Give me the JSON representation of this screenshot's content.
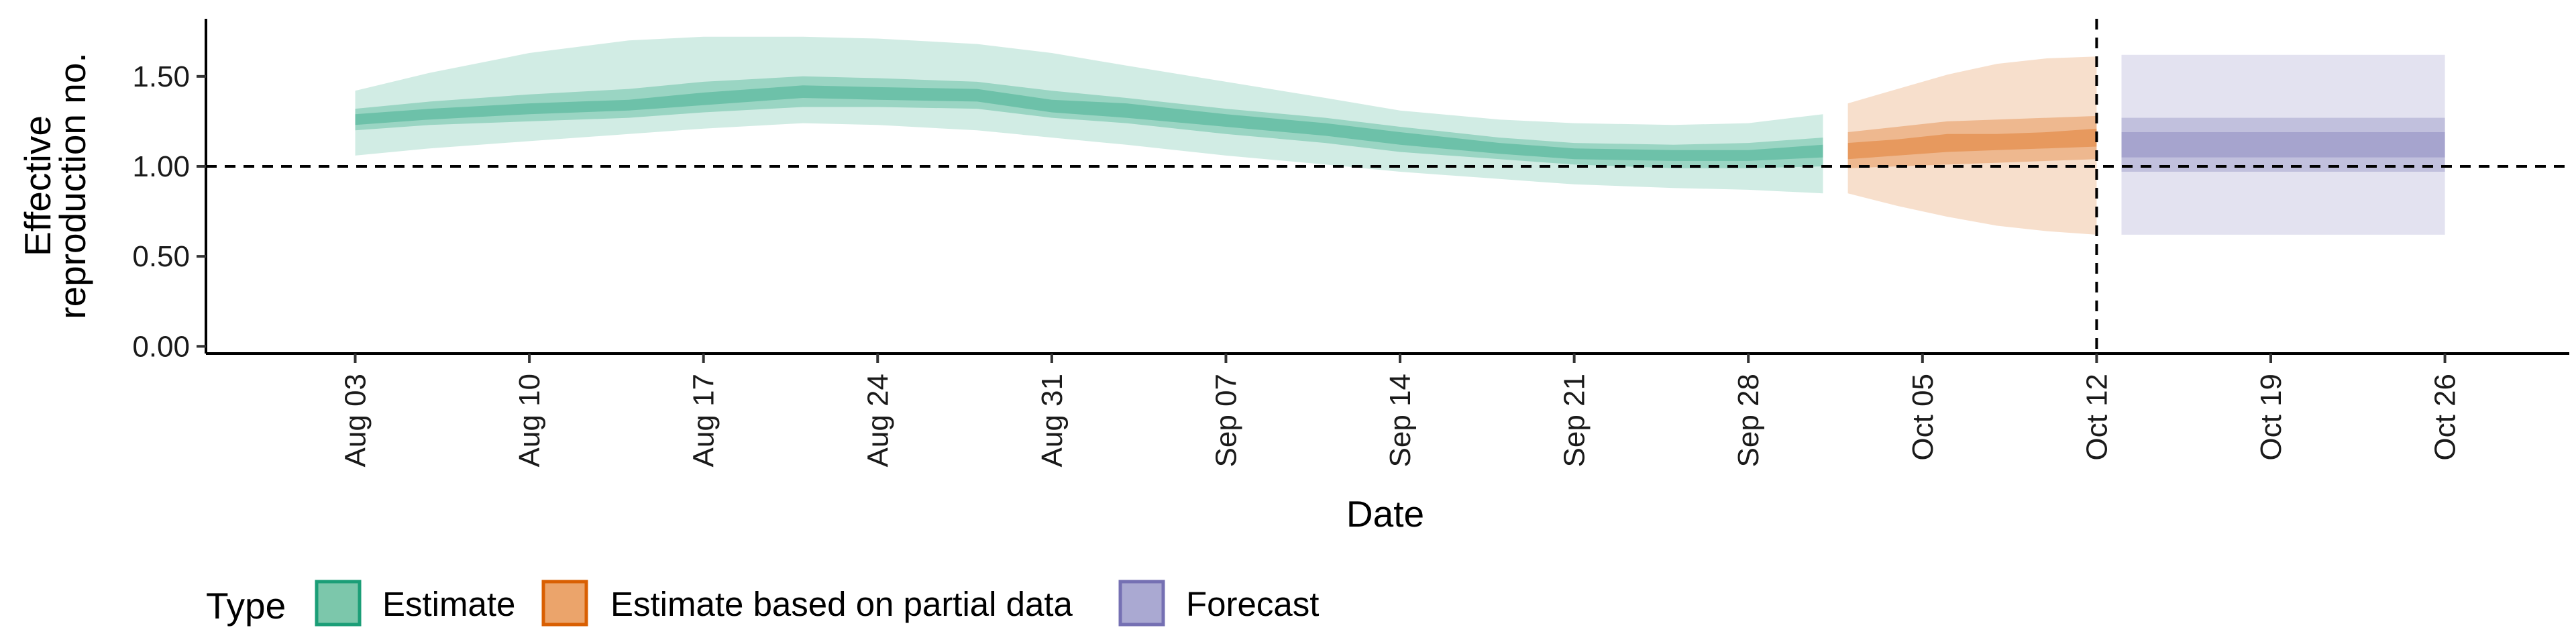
{
  "chart_data": {
    "type": "area",
    "title": "",
    "xlabel": "Date",
    "ylabel_lines": [
      "Effective",
      "reproduction no."
    ],
    "ylim": [
      -0.04,
      1.82
    ],
    "y_ticks": [
      0.0,
      0.5,
      1.0,
      1.5
    ],
    "y_tick_labels": [
      "0.00",
      "0.50",
      "1.00",
      "1.50"
    ],
    "x_range": [
      "2020-07-28",
      "2020-10-31"
    ],
    "x_ticks": [
      "2020-08-03",
      "2020-08-10",
      "2020-08-17",
      "2020-08-24",
      "2020-08-31",
      "2020-09-07",
      "2020-09-14",
      "2020-09-21",
      "2020-09-28",
      "2020-10-05",
      "2020-10-12",
      "2020-10-19",
      "2020-10-26"
    ],
    "x_tick_labels": [
      "Aug 03",
      "Aug 10",
      "Aug 17",
      "Aug 24",
      "Aug 31",
      "Sep 07",
      "Sep 14",
      "Sep 21",
      "Sep 28",
      "Oct 05",
      "Oct 12",
      "Oct 19",
      "Oct 26"
    ],
    "reference_line_y": 1.0,
    "reference_line_x": "2020-10-12",
    "grid": false,
    "legend": {
      "title": "Type",
      "position": "bottom",
      "entries": [
        {
          "label": "Estimate",
          "fill": "#7cc7ab",
          "stroke": "#1b9e77"
        },
        {
          "label": "Estimate based on partial data",
          "fill": "#eba46b",
          "stroke": "#d95f02"
        },
        {
          "label": "Forecast",
          "fill": "#aaa9d2",
          "stroke": "#7570b3"
        }
      ]
    },
    "series": [
      {
        "name": "Estimate",
        "color": "#1b9e77",
        "x": [
          "2020-08-03",
          "2020-08-06",
          "2020-08-10",
          "2020-08-14",
          "2020-08-17",
          "2020-08-21",
          "2020-08-24",
          "2020-08-28",
          "2020-08-31",
          "2020-09-03",
          "2020-09-07",
          "2020-09-11",
          "2020-09-14",
          "2020-09-18",
          "2020-09-21",
          "2020-09-25",
          "2020-09-28",
          "2020-10-01"
        ],
        "median": [
          1.26,
          1.29,
          1.32,
          1.34,
          1.38,
          1.42,
          1.41,
          1.4,
          1.33,
          1.31,
          1.25,
          1.21,
          1.16,
          1.1,
          1.07,
          1.06,
          1.06,
          1.08
        ],
        "lower_90": [
          1.06,
          1.1,
          1.14,
          1.18,
          1.21,
          1.24,
          1.23,
          1.2,
          1.16,
          1.12,
          1.06,
          1.01,
          0.97,
          0.93,
          0.9,
          0.88,
          0.87,
          0.85
        ],
        "upper_90": [
          1.42,
          1.52,
          1.63,
          1.7,
          1.72,
          1.72,
          1.71,
          1.68,
          1.63,
          1.56,
          1.47,
          1.38,
          1.31,
          1.26,
          1.24,
          1.23,
          1.24,
          1.29
        ],
        "lower_50": [
          1.2,
          1.23,
          1.25,
          1.27,
          1.3,
          1.33,
          1.33,
          1.32,
          1.27,
          1.24,
          1.18,
          1.13,
          1.08,
          1.04,
          1.01,
          0.99,
          0.99,
          1.0
        ],
        "upper_50": [
          1.32,
          1.36,
          1.4,
          1.43,
          1.47,
          1.5,
          1.49,
          1.47,
          1.42,
          1.38,
          1.32,
          1.27,
          1.22,
          1.16,
          1.13,
          1.12,
          1.13,
          1.16
        ],
        "lower_20": [
          1.23,
          1.26,
          1.29,
          1.31,
          1.34,
          1.38,
          1.37,
          1.36,
          1.3,
          1.27,
          1.22,
          1.17,
          1.12,
          1.07,
          1.04,
          1.03,
          1.03,
          1.05
        ],
        "upper_20": [
          1.29,
          1.32,
          1.35,
          1.37,
          1.41,
          1.45,
          1.44,
          1.43,
          1.37,
          1.35,
          1.29,
          1.24,
          1.19,
          1.13,
          1.1,
          1.09,
          1.09,
          1.12
        ]
      },
      {
        "name": "Estimate based on partial data",
        "color": "#d95f02",
        "x": [
          "2020-10-02",
          "2020-10-04",
          "2020-10-06",
          "2020-10-08",
          "2020-10-10",
          "2020-10-12"
        ],
        "median": [
          1.08,
          1.1,
          1.13,
          1.13,
          1.14,
          1.16
        ],
        "lower_90": [
          0.85,
          0.78,
          0.72,
          0.67,
          0.64,
          0.62
        ],
        "upper_90": [
          1.35,
          1.43,
          1.51,
          1.57,
          1.6,
          1.61
        ],
        "lower_50": [
          0.99,
          1.0,
          1.01,
          1.02,
          1.03,
          1.04
        ],
        "upper_50": [
          1.19,
          1.22,
          1.25,
          1.26,
          1.27,
          1.28
        ],
        "lower_20": [
          1.04,
          1.06,
          1.08,
          1.09,
          1.1,
          1.11
        ],
        "upper_20": [
          1.13,
          1.15,
          1.18,
          1.18,
          1.19,
          1.21
        ]
      },
      {
        "name": "Forecast",
        "color": "#7570b3",
        "x": [
          "2020-10-13",
          "2020-10-26"
        ],
        "median": [
          1.12,
          1.12
        ],
        "lower_90": [
          0.62,
          0.62
        ],
        "upper_90": [
          1.62,
          1.62
        ],
        "lower_50": [
          0.97,
          0.97
        ],
        "upper_50": [
          1.27,
          1.27
        ],
        "lower_20": [
          1.05,
          1.05
        ],
        "upper_20": [
          1.19,
          1.19
        ]
      }
    ]
  }
}
